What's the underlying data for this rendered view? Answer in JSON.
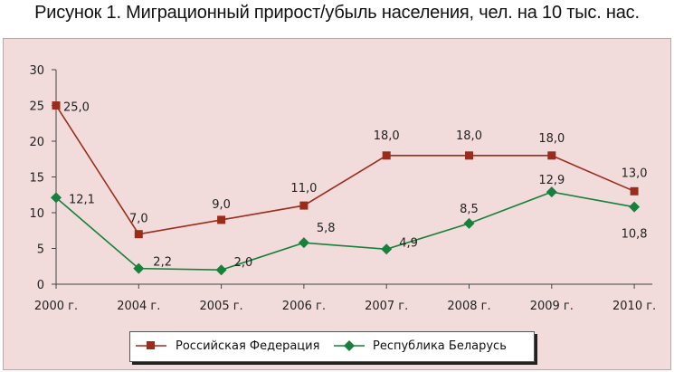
{
  "figure": {
    "title": "Рисунок 1. Миграционный прирост/убыль населения, чел. на 10 тыс. нас."
  },
  "chart_data": {
    "type": "line",
    "title": "Рисунок 1. Миграционный прирост/убыль населения, чел. на 10 тыс. нас.",
    "categories": [
      "2000 г.",
      "2004 г.",
      "2005 г.",
      "2006 г.",
      "2007 г.",
      "2008 г.",
      "2009 г.",
      "2010 г."
    ],
    "ylim": [
      0,
      30
    ],
    "yticks": [
      "0",
      "5",
      "10",
      "15",
      "20",
      "25",
      "30"
    ],
    "grid": false,
    "legend_position": "bottom",
    "series": [
      {
        "name": "Российская Федерация",
        "values": [
          25.0,
          7.0,
          9.0,
          11.0,
          18.0,
          18.0,
          18.0,
          13.0
        ],
        "labels": [
          "25,0",
          "7,0",
          "9,0",
          "11,0",
          "18,0",
          "18,0",
          "18,0",
          "13,0"
        ],
        "color": "#9b2c1c",
        "marker": "square"
      },
      {
        "name": "Республика Беларусь",
        "values": [
          12.1,
          2.2,
          2.0,
          5.8,
          4.9,
          8.5,
          12.9,
          10.8
        ],
        "labels": [
          "12,1",
          "2,2",
          "2,0",
          "5,8",
          "4,9",
          "8,5",
          "12,9",
          "10,8"
        ],
        "color": "#16803c",
        "marker": "diamond"
      }
    ]
  }
}
